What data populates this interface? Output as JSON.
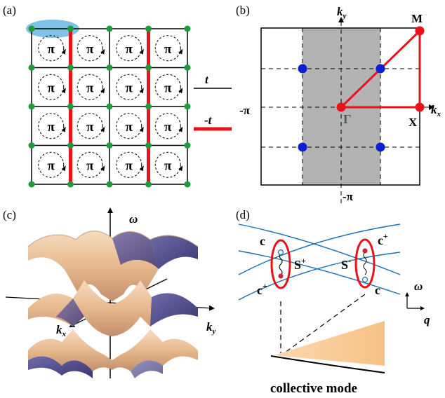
{
  "panels": {
    "a": {
      "label": "(a)",
      "flux_label": "π",
      "legend": {
        "t_label": "t",
        "minus_t_label": "-t"
      },
      "colors": {
        "site": "#1e9a3a",
        "bond_neg": "#e8131a",
        "highlight": "#7ec3e6",
        "bond_pos": "#000000"
      }
    },
    "b": {
      "label": "(b)",
      "axis_x": "k",
      "axis_x_sub": "x",
      "axis_y": "k",
      "axis_y_sub": "y",
      "pi_left": "-π",
      "pi_bottom": "-π",
      "point_M": "M",
      "point_X": "X",
      "point_Gamma": "Γ",
      "colors": {
        "shade": "#b3b3b3",
        "path": "#e8131a",
        "dirac": "#0a1fd0"
      }
    },
    "c": {
      "label": "(c)",
      "axis_omega": "ω",
      "axis_kx": "k",
      "axis_kx_sub": "x",
      "axis_ky": "k",
      "axis_ky_sub": "y",
      "colors": {
        "surface_top": "#f3d3b3",
        "surface_dark": "#5a5698"
      }
    },
    "d": {
      "label": "(d)",
      "left_top": "c",
      "left_bottom": "c",
      "left_bottom_sup": "+",
      "left_S": "S",
      "left_S_sup": "+",
      "right_top": "c",
      "right_top_sup": "+",
      "right_bottom": "c",
      "right_S": "S",
      "right_S_sup": "-",
      "axis_omega": "ω",
      "axis_q": "q",
      "caption": "collective mode",
      "colors": {
        "bands": "#1a6fb0",
        "loop": "#e8131a",
        "continuum": "#f8cb93"
      }
    }
  }
}
